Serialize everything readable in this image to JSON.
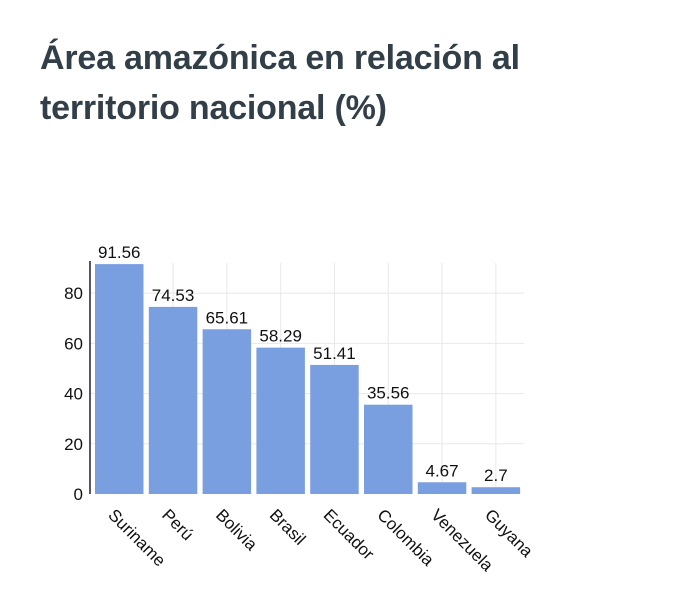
{
  "chart_data": {
    "type": "bar",
    "title": "Área amazónica en relación al territorio nacional (%)",
    "xlabel": "",
    "ylabel": "",
    "categories": [
      "Suriname",
      "Perú",
      "Bolivia",
      "Brasil",
      "Ecuador",
      "Colombia",
      "Venezuela",
      "Guyana"
    ],
    "values": [
      91.56,
      74.53,
      65.61,
      58.29,
      51.41,
      35.56,
      4.67,
      2.7
    ],
    "value_labels": [
      "91.56",
      "74.53",
      "65.61",
      "58.29",
      "51.41",
      "35.56",
      "4.67",
      "2.7"
    ],
    "ylim": [
      0,
      92
    ],
    "yticks": [
      0,
      20,
      40,
      60,
      80
    ],
    "ytick_labels": [
      "0",
      "20",
      "40",
      "60",
      "80"
    ],
    "grid": true,
    "legend": "none",
    "bar_color": "#7a9fe0",
    "grid_color": "#e8e8e8",
    "title_color": "#333f48"
  }
}
